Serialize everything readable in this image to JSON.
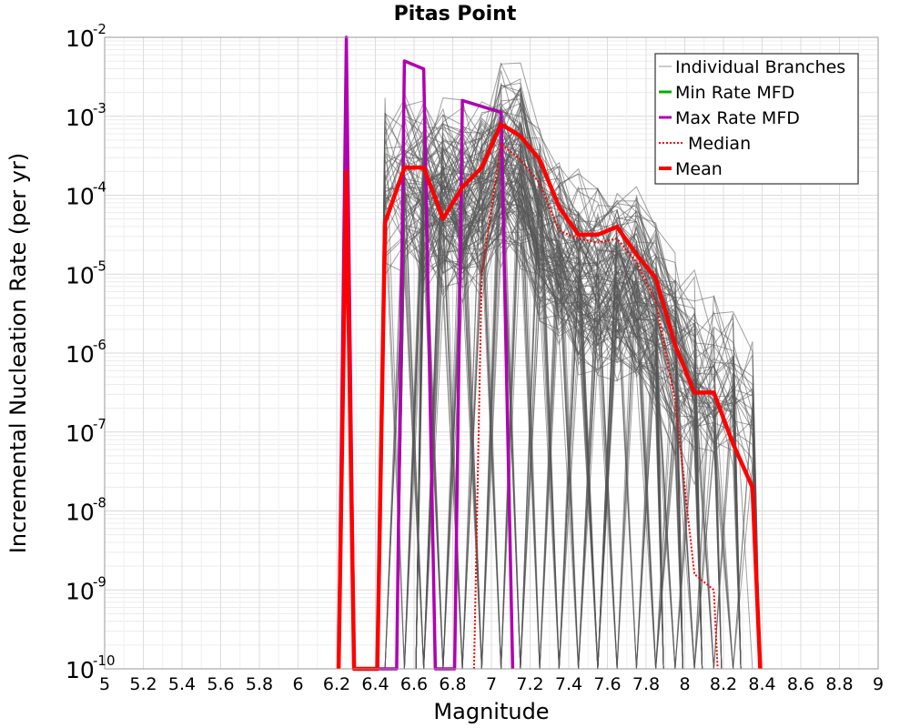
{
  "chart_data": {
    "type": "line",
    "title": "Pitas Point",
    "xlabel": "Magnitude",
    "ylabel": "Incremental Nucleation Rate (per yr)",
    "xlim": [
      5,
      9
    ],
    "ylim_log10": [
      -10,
      -2
    ],
    "yscale": "log",
    "grid": true,
    "legend_position": "top-right",
    "x_ticks": [
      "5",
      "5.2",
      "5.4",
      "5.6",
      "5.8",
      "6",
      "6.2",
      "6.4",
      "6.6",
      "6.8",
      "7",
      "7.2",
      "7.4",
      "7.6",
      "7.8",
      "8",
      "8.2",
      "8.4",
      "8.6",
      "8.8",
      "9"
    ],
    "y_ticks": [
      {
        "base": "10",
        "exp": "-10"
      },
      {
        "base": "10",
        "exp": "-9"
      },
      {
        "base": "10",
        "exp": "-8"
      },
      {
        "base": "10",
        "exp": "-7"
      },
      {
        "base": "10",
        "exp": "-6"
      },
      {
        "base": "10",
        "exp": "-5"
      },
      {
        "base": "10",
        "exp": "-4"
      },
      {
        "base": "10",
        "exp": "-3"
      },
      {
        "base": "10",
        "exp": "-2"
      }
    ],
    "series": [
      {
        "name": "Individual Branches",
        "color": "#555555",
        "style": "thin",
        "count": 140,
        "envelope_x": [
          6.45,
          6.55,
          6.65,
          6.75,
          6.85,
          6.95,
          7.05,
          7.15,
          7.25,
          7.35,
          7.45,
          7.55,
          7.65,
          7.75,
          7.85,
          7.95,
          8.05,
          8.15,
          8.25,
          8.35
        ],
        "envelope_log10_top": [
          -2.4,
          -2.5,
          -2.55,
          -2.65,
          -2.7,
          -2.6,
          -2.2,
          -2.25,
          -2.9,
          -3.3,
          -3.6,
          -3.65,
          -3.7,
          -3.75,
          -4.1,
          -4.6,
          -4.9,
          -5.0,
          -5.1,
          -5.15
        ]
      },
      {
        "name": "Min Rate MFD",
        "color": "#00b000",
        "style": "solid",
        "x": [],
        "log10_y": []
      },
      {
        "name": "Max Rate MFD",
        "color": "#b000b0",
        "style": "solid",
        "x": [
          6.21,
          6.25,
          6.29,
          6.51,
          6.55,
          6.65,
          6.71,
          6.81,
          6.85,
          7.05,
          7.11
        ],
        "log10_y": [
          -10,
          -1.95,
          -10,
          -10,
          -2.3,
          -2.4,
          -10,
          -10,
          -2.8,
          -2.95,
          -10
        ]
      },
      {
        "name": "Median",
        "color": "#ff0000",
        "style": "dotted",
        "x": [
          6.91,
          6.95,
          7.05,
          7.15,
          7.25,
          7.35,
          7.45,
          7.55,
          7.65,
          7.75,
          7.85,
          7.95,
          8.05,
          8.15,
          8.17
        ],
        "log10_y": [
          -10,
          -5.0,
          -3.35,
          -3.55,
          -3.85,
          -4.45,
          -4.55,
          -4.6,
          -4.55,
          -4.85,
          -5.35,
          -6.6,
          -8.8,
          -9.0,
          -10
        ]
      },
      {
        "name": "Mean",
        "color": "#ff0000",
        "style": "thick",
        "x": [
          6.21,
          6.25,
          6.29,
          6.41,
          6.45,
          6.55,
          6.65,
          6.75,
          6.85,
          6.95,
          7.05,
          7.15,
          7.25,
          7.35,
          7.45,
          7.55,
          7.65,
          7.75,
          7.85,
          7.95,
          8.05,
          8.15,
          8.25,
          8.35,
          8.39
        ],
        "log10_y": [
          -10,
          -3.7,
          -10,
          -10,
          -4.35,
          -3.65,
          -3.65,
          -4.3,
          -3.9,
          -3.65,
          -3.1,
          -3.25,
          -3.55,
          -4.15,
          -4.5,
          -4.5,
          -4.4,
          -4.75,
          -5.05,
          -5.9,
          -6.5,
          -6.5,
          -7.15,
          -7.7,
          -10
        ]
      }
    ]
  }
}
